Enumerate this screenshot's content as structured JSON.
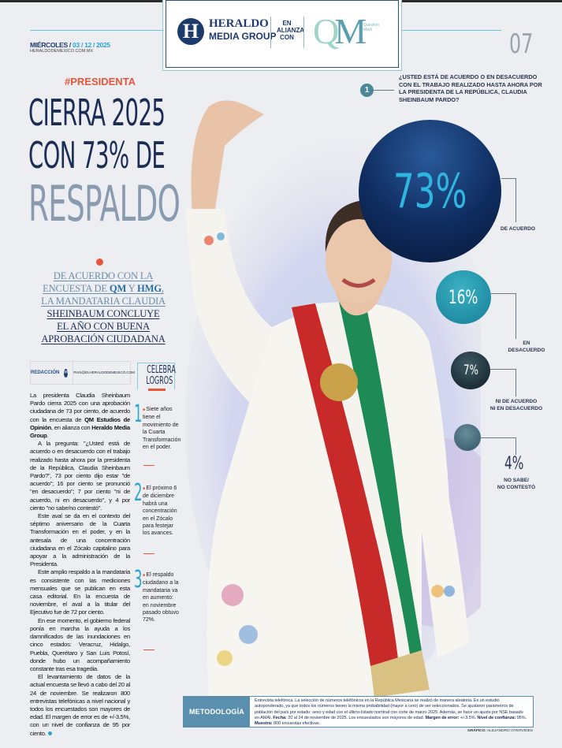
{
  "header": {
    "date_day": "MIÉRCOLES /",
    "date": "03 / 12 / 2025",
    "site": "HERALDODEMEXICO.COM.MX",
    "logo": {
      "icon": "H",
      "name": "HERALDO",
      "sub": "MEDIA GROUP",
      "alliance": "EN ALIANZA CON",
      "partner": "QM",
      "partner_sub": "Question Mark"
    },
    "page_number": "07"
  },
  "article": {
    "tag": "#PRESIDENTA",
    "title_lines": [
      "CIERRA 2025",
      "CON 73% DE",
      "RESPALDO"
    ],
    "subhead": {
      "l1": "DE ACUERDO CON LA",
      "l2a": "ENCUESTA DE ",
      "l2b": "QM",
      "l2c": " Y ",
      "l2d": "HMG",
      "l2e": ",",
      "l3": "LA MANDATARIA CLAUDIA",
      "l4": "SHEINBAUM CONCLUYE",
      "l5": "EL AÑO CON BUENA",
      "l6": "APROBACIÓN CIUDADANA"
    },
    "byline": {
      "author": "REDACCIÓN",
      "email": "PAIS@ELHERALDODEMEXICO.COM"
    },
    "body": {
      "p1a": "La presidenta Claudia Sheinbaum Pardo cierra 2025 con una aprobación ciudadana de 73 por ciento, de acuerdo con la encuesta de ",
      "p1b": "QM Estudios de Opinión",
      "p1c": ", en alianza con ",
      "p1d": "Heraldo Media Group",
      "p1e": ".",
      "p2": "A la pregunta: \"¿Usted está de acuerdo o en desacuerdo con el trabajo realizado hasta ahora por la presidenta de la República, Claudia Sheinbaum Pardo?\", 73 por ciento dijo estar \"de acuerdo\"; 16 por ciento se pronunció \"en desacuerdo\"; 7 por ciento \"ni de acuerdo, ni en desacuerdo\", y 4 por ciento \"no sabe/no contestó\".",
      "p3": "Este aval se da en el contexto del séptimo aniversario de la Cuarta Transformación en el poder, y en la antesala de una concentración ciudadana en el Zócalo capitalino para apoyar a la administración de la Presidenta.",
      "p4": "Este amplio respaldo a la mandataria es consistente con las mediciones mensuales que se publican en esta casa editorial. En la encuesta de noviembre, el aval a la titular del Ejecutivo fue de 72 por ciento.",
      "p5": "En ese momento, el gobierno federal ponía en marcha la ayuda a los damnificados de las inundaciones en cinco estados: Veracruz, Hidalgo, Puebla, Querétaro y San Luis Potosí, donde hubo un acompañamiento constante tras esa tragedia.",
      "p6": "El levantamiento de datos de la actual encuesta se llevó a cabo del 20 al 24 de noviembre. Se realizaron 800 entrevistas telefónicas a nivel nacional y todos los encuestados son mayores de edad. El margen de error es de +/-3.5%, con un nivel de confianza de 95 por ciento."
    }
  },
  "sidebar": {
    "title_lines": [
      "CELEBRA",
      "LOGROS"
    ],
    "items": [
      {
        "number": "1",
        "text": "Siete años tiene el movimiento de la Cuarta Transformación en el poder."
      },
      {
        "number": "2",
        "text": "El próximo 6 de diciembre habrá una concentración en el Zócalo para festejar los avances."
      },
      {
        "number": "3",
        "text": "El respaldo ciudadano a la mandataria va en aumento: en noviembre pasado obtuvo 72%."
      }
    ]
  },
  "poll": {
    "number": "1",
    "question": "¿USTED ESTÁ DE ACUERDO O EN DESACUERDO CON EL TRABAJO REALIZADO HASTA AHORA POR LA PRESIDENTA DE LA REPÚBLICA, CLAUDIA SHEINBAUM PARDO?",
    "results": [
      {
        "value": "73%",
        "label": "DE ACUERDO",
        "color": "#0f2c60"
      },
      {
        "value": "16%",
        "label1": "EN",
        "label2": "DESACUERDO",
        "color": "#167e96"
      },
      {
        "value": "7%",
        "label1": "NI DE ACUERDO",
        "label2": "NI EN DESACUERDO",
        "color": "#0d1c24"
      },
      {
        "value": "4%",
        "label1": "NO SABE/",
        "label2": "NO CONTESTÓ",
        "color": "#2f5566"
      }
    ]
  },
  "methodology": {
    "label": "METODOLOGÍA",
    "text": "Entrevista telefónica. La selección de números telefónicos en la República Mexicana se realizó de manera aleatoria. Es un estudio autoponderado, ya que todos los números tienen la misma probabilidad (mayor a cero) de ser seleccionados. Se ajustaron parámetros de población del país por estado: sexo y edad con el último listado nominal con corte de marzo 2025. Además, se hace un ajuste por NSE basado en AMAI. ",
    "fecha_label": "Fecha:",
    "fecha": " 20 al 24 de noviembre de 2025. Los encuestados son mayores de edad. ",
    "margen_label": "Margen de error:",
    "margen": " +/-3.5%. ",
    "nivel_label": "Nivel de confianza:",
    "nivel": " 95%. ",
    "muestra_label": "Muestra:",
    "muestra": " 800 encuestas efectivas."
  },
  "credit": {
    "label": "GRÁFICO:",
    "name": "ALEJANDRO OYERVIDES"
  },
  "colors": {
    "accent": "#e8553b",
    "navy": "#1b2d55",
    "cyan": "#2aa5cf"
  }
}
